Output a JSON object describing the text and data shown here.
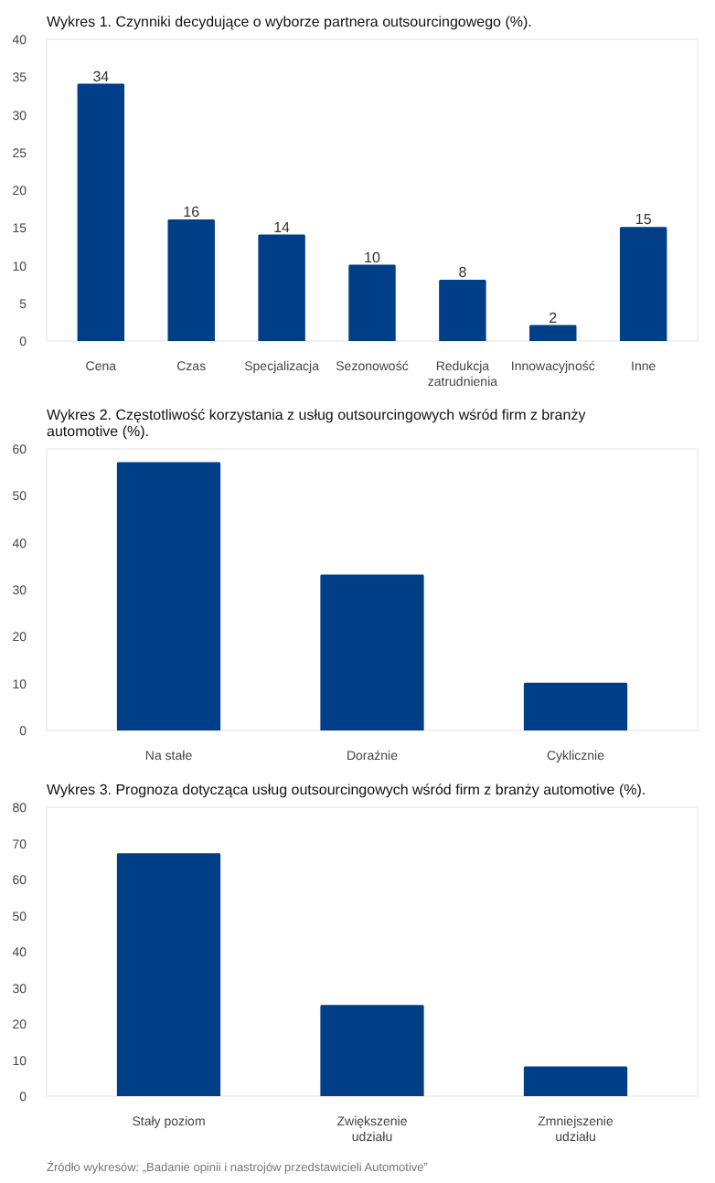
{
  "chart_data": [
    {
      "type": "bar",
      "title": "Wykres 1. Czynniki decydujące o wyborze partnera outsourcingowego (%).",
      "categories": [
        "Cena",
        "Czas",
        "Specjalizacja",
        "Sezonowość",
        "Redukcja zatrudnienia",
        "Innowacyjność",
        "Inne"
      ],
      "values": [
        34,
        16,
        14,
        10,
        8,
        2,
        15
      ],
      "color": "#003f87",
      "ylim": [
        0,
        40
      ],
      "yticks": [
        0,
        5,
        10,
        15,
        20,
        25,
        30,
        35,
        40
      ],
      "data_labels": true,
      "grid": false
    },
    {
      "type": "bar",
      "title": "Wykres 2. Częstotliwość korzystania z usług outsourcingowych wśród firm z branży automotive  (%).",
      "categories": [
        "Na stałe",
        "Doraźnie",
        "Cyklicznie"
      ],
      "values": [
        57,
        33,
        10
      ],
      "color": "#003f87",
      "ylim": [
        0,
        60
      ],
      "yticks": [
        0,
        10,
        20,
        30,
        40,
        50,
        60
      ],
      "grid": false
    },
    {
      "type": "bar",
      "title": "Wykres 3. Prognoza dotycząca usług outsourcingowych wśród firm z branży automotive (%).",
      "categories": [
        "Stały poziom",
        "Zwiększenie udziału",
        "Zmniejszenie udziału"
      ],
      "values": [
        67,
        25,
        8
      ],
      "color": "#003f87",
      "ylim": [
        0,
        80
      ],
      "yticks": [
        0,
        10,
        20,
        30,
        40,
        50,
        60,
        70,
        80
      ],
      "grid": false,
      "annotations": [
        "Źródło wykresów: „Badanie opinii i nastrojów przedstawicieli Automotive”"
      ]
    }
  ]
}
